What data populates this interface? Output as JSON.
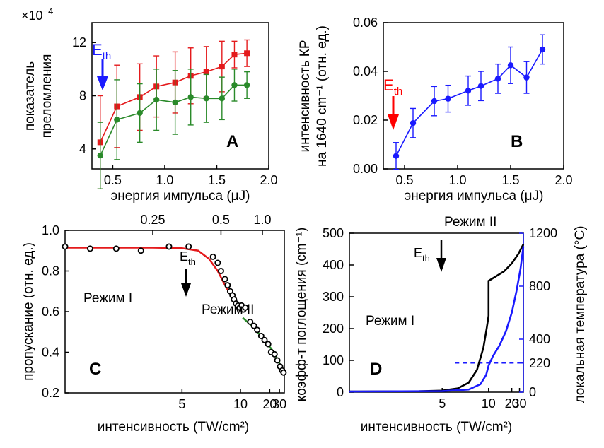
{
  "panels": [
    {
      "letter": "A",
      "type": "line",
      "xlabel": "энергия импульса (μJ)",
      "ylabel_lines": [
        "показатель",
        "преломления"
      ],
      "exponent_label": "×10",
      "exponent_power": "−4",
      "xlim": [
        0.3,
        2.0
      ],
      "ylim": [
        2.5,
        13.5
      ],
      "xticks": [
        0.5,
        1.0,
        1.5,
        2.0
      ],
      "xtick_labels": [
        "0.5",
        "1.0",
        "1.5",
        "2.0"
      ],
      "yticks": [
        4,
        8,
        12
      ],
      "ytick_labels": [
        "4",
        "8",
        "12"
      ],
      "annotation": {
        "base": "E",
        "sub": "th",
        "color": "#1a1aff"
      },
      "series": [
        {
          "color": "#e41a1c",
          "marker": "square",
          "x": [
            0.38,
            0.54,
            0.76,
            0.92,
            1.1,
            1.25,
            1.4,
            1.55,
            1.67,
            1.79
          ],
          "y": [
            4.5,
            7.2,
            7.9,
            8.7,
            9.0,
            9.5,
            9.8,
            10.2,
            11.1,
            11.2
          ],
          "yerr": [
            3.5,
            3.1,
            2.5,
            2.3,
            2.3,
            2.1,
            1.9,
            1.9,
            1.0,
            1.0
          ]
        },
        {
          "color": "#2a8a2a",
          "marker": "circle",
          "x": [
            0.38,
            0.54,
            0.76,
            0.92,
            1.1,
            1.25,
            1.4,
            1.55,
            1.67,
            1.79
          ],
          "y": [
            3.5,
            6.2,
            6.7,
            7.7,
            7.5,
            7.9,
            7.8,
            7.8,
            8.8,
            8.8
          ],
          "yerr": [
            2.5,
            3.0,
            2.2,
            2.3,
            2.4,
            2.1,
            1.8,
            1.6,
            1.2,
            1.0
          ]
        }
      ]
    },
    {
      "letter": "B",
      "type": "line",
      "xlabel": "энергия импульса (μJ)",
      "ylabel_lines": [
        "интенсивность КР",
        "на 1640 cm⁻¹ (отн. ед.)"
      ],
      "xlim": [
        0.3,
        2.0
      ],
      "ylim": [
        0.0,
        0.06
      ],
      "xticks": [
        0.5,
        1.0,
        1.5,
        2.0
      ],
      "xtick_labels": [
        "0.5",
        "1.0",
        "1.5",
        "2.0"
      ],
      "yticks": [
        0.0,
        0.02,
        0.04,
        0.06
      ],
      "ytick_labels": [
        "0.00",
        "0.02",
        "0.04",
        "0.06"
      ],
      "annotation": {
        "base": "E",
        "sub": "th",
        "color": "#ff0000"
      },
      "series": [
        {
          "color": "#1a1aff",
          "marker": "circle",
          "x": [
            0.42,
            0.58,
            0.78,
            0.91,
            1.1,
            1.22,
            1.38,
            1.5,
            1.65,
            1.8
          ],
          "y": [
            0.0053,
            0.0188,
            0.0278,
            0.0288,
            0.0321,
            0.034,
            0.037,
            0.0425,
            0.0375,
            0.049
          ],
          "yerr": [
            0.0055,
            0.006,
            0.006,
            0.0055,
            0.006,
            0.006,
            0.006,
            0.0075,
            0.0065,
            0.006
          ]
        }
      ]
    },
    {
      "letter": "C",
      "type": "scatter",
      "xlabel": "интенсивность (TW/cm²)",
      "ylabel": "пропускание (отн. ед.)",
      "xscale": "reciprocal",
      "xlim": [
        2.5,
        40
      ],
      "ylim": [
        0.2,
        1.0
      ],
      "xticks": [
        5,
        10,
        20,
        30
      ],
      "xtick_labels": [
        "5",
        "10",
        "20",
        "30"
      ],
      "top_xticks": [
        4.0,
        7.5,
        16.0
      ],
      "top_xtick_labels": [
        "0.25",
        "0.5",
        "1.0"
      ],
      "yticks": [
        0.2,
        0.4,
        0.6,
        0.8,
        1.0
      ],
      "ytick_labels": [
        "0.2",
        "0.4",
        "0.6",
        "0.8",
        "1.0"
      ],
      "annotation": {
        "base": "E",
        "sub": "th",
        "color": "#000000",
        "x": 10.5
      },
      "regime_I": "Режим I",
      "regime_II": "Режим II",
      "points": {
        "x": [
          2.5,
          2.8,
          3.2,
          3.7,
          4.5,
          5.3,
          6.8,
          7.2,
          7.5,
          7.9,
          8.2,
          8.5,
          8.8,
          9.0,
          9.3,
          9.6,
          9.9,
          10.2,
          10.5,
          10.9,
          12.0,
          13.0,
          14.0,
          15.5,
          17.0,
          19.0,
          21.0,
          24.0,
          27.0,
          31.0,
          35.0,
          38.0
        ],
        "y": [
          0.92,
          0.91,
          0.91,
          0.9,
          0.92,
          0.92,
          0.87,
          0.84,
          0.8,
          0.76,
          0.73,
          0.7,
          0.68,
          0.66,
          0.64,
          0.63,
          0.62,
          0.63,
          0.61,
          0.62,
          0.55,
          0.53,
          0.51,
          0.48,
          0.46,
          0.44,
          0.4,
          0.39,
          0.36,
          0.33,
          0.31,
          0.3
        ]
      },
      "fit_I": {
        "color": "#e41a1c",
        "x": [
          2.5,
          4.0,
          5.0,
          5.8,
          6.5,
          7.2,
          7.8,
          8.3,
          8.8,
          9.3,
          10.0,
          10.4
        ],
        "y": [
          0.915,
          0.915,
          0.912,
          0.9,
          0.86,
          0.8,
          0.74,
          0.7,
          0.67,
          0.65,
          0.63,
          0.61
        ]
      },
      "fit_II": {
        "color": "#2a8a2a",
        "x": [
          10.4,
          13.0,
          17.0,
          22.0,
          28.0,
          34.0,
          40.0
        ],
        "y": [
          0.57,
          0.52,
          0.46,
          0.41,
          0.36,
          0.32,
          0.29
        ]
      }
    },
    {
      "letter": "D",
      "type": "line",
      "xlabel": "интенсивность (TW/cm²)",
      "ylabel": "коэфф-т поглощения (cm⁻¹)",
      "y2label": "локальная температура (°C)",
      "xscale": "reciprocal",
      "xlim": [
        2.5,
        40
      ],
      "ylim": [
        0,
        500
      ],
      "y2lim": [
        0,
        1200
      ],
      "xticks": [
        5,
        10,
        20,
        30
      ],
      "xtick_labels": [
        "5",
        "10",
        "20",
        "30"
      ],
      "yticks": [
        0,
        100,
        200,
        300,
        400,
        500
      ],
      "ytick_labels": [
        "0",
        "100",
        "200",
        "300",
        "400",
        "500"
      ],
      "y2ticks": [
        0,
        220,
        400,
        800,
        1200
      ],
      "y2tick_labels": [
        "0",
        "220",
        "400",
        "800",
        "1200"
      ],
      "annotation": {
        "base": "E",
        "sub": "th",
        "color": "#000000",
        "x": 10
      },
      "regime_I": "Режим I",
      "regime_II": "Режим II",
      "absorption": {
        "color": "#000000",
        "x": [
          2.5,
          4.0,
          5.0,
          6.0,
          7.0,
          8.0,
          9.0,
          9.6,
          10.0,
          10.0,
          15.0,
          20.0,
          28.0,
          40.0
        ],
        "y": [
          2,
          3,
          5,
          12,
          30,
          70,
          140,
          200,
          240,
          350,
          380,
          405,
          435,
          465
        ]
      },
      "temperature": {
        "color": "#1a1aff",
        "x": [
          2.5,
          5.0,
          7.0,
          8.5,
          9.5,
          10.0,
          11.0,
          13.0,
          16.0,
          20.0,
          25.0,
          32.0,
          40.0
        ],
        "y": [
          5,
          8,
          20,
          60,
          130,
          200,
          270,
          350,
          460,
          600,
          760,
          930,
          1100
        ]
      },
      "threshold_line": {
        "value": 220,
        "x_from": 5.8,
        "color": "#1a1aff"
      }
    }
  ]
}
